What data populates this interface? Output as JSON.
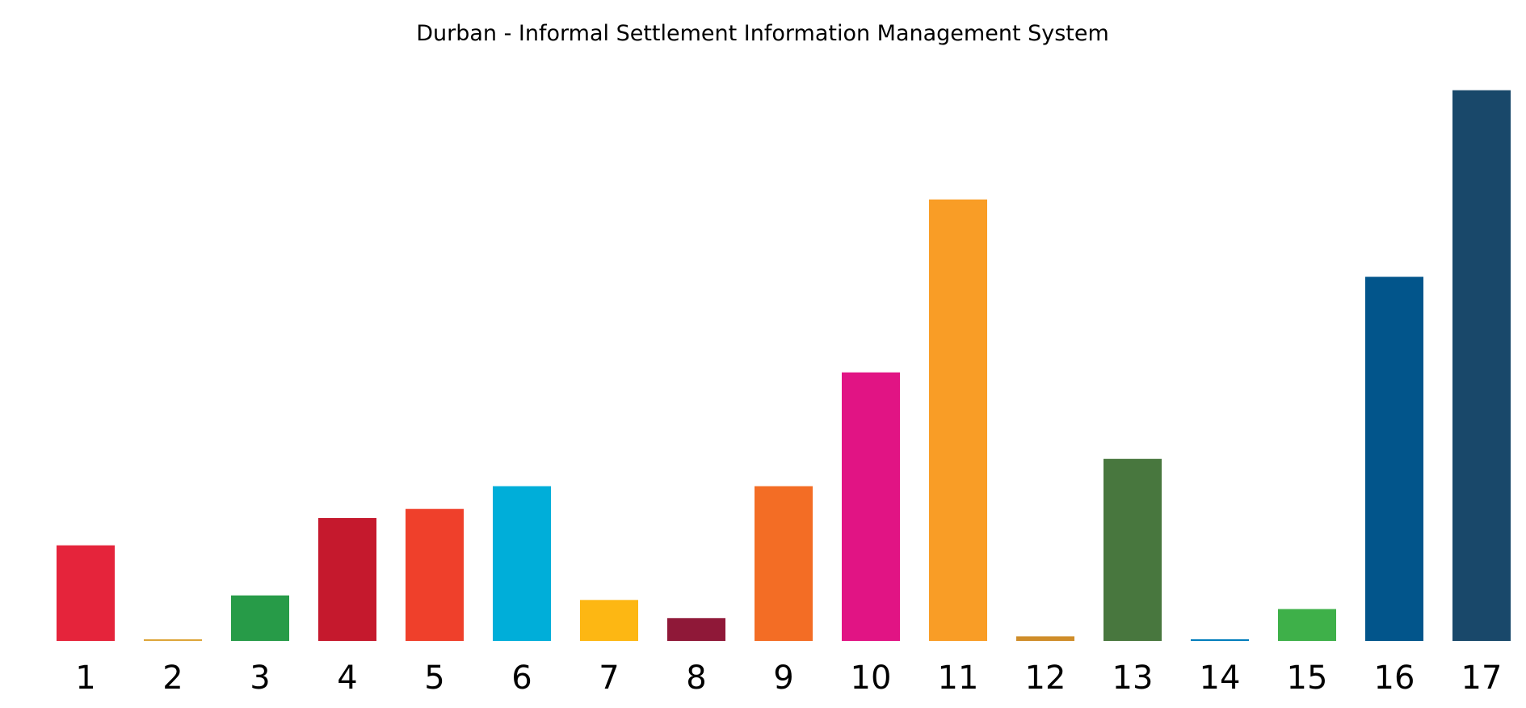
{
  "chart_data": {
    "type": "bar",
    "title": "Durban - Informal Settlement Information Management System",
    "xlabel": "",
    "ylabel": "",
    "categories": [
      "1",
      "2",
      "3",
      "4",
      "5",
      "6",
      "7",
      "8",
      "9",
      "10",
      "11",
      "12",
      "13",
      "14",
      "15",
      "16",
      "17"
    ],
    "values": [
      105,
      1,
      50,
      135,
      145,
      170,
      45,
      25,
      170,
      295,
      485,
      5,
      200,
      1,
      35,
      400,
      605
    ],
    "colors": [
      "#E5243B",
      "#DDA63A",
      "#279B48",
      "#C5192D",
      "#EF402B",
      "#00AED9",
      "#FDB713",
      "#8F1838",
      "#F36D25",
      "#E11484",
      "#F99D26",
      "#CF8D2A",
      "#48773E",
      "#007DBC",
      "#3EB049",
      "#02558B",
      "#19486A"
    ],
    "ylim": [
      0,
      610
    ],
    "grid": false,
    "legend": "none"
  }
}
